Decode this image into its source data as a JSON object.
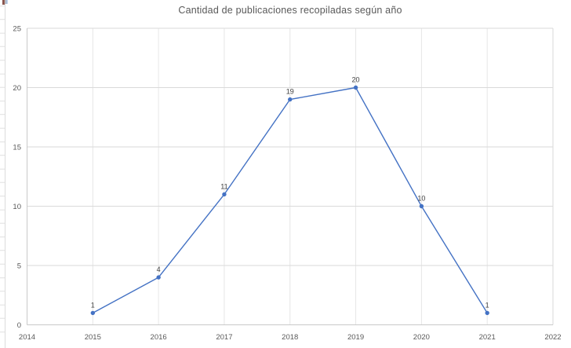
{
  "chart_data": {
    "type": "line",
    "title": "Cantidad de publicaciones recopiladas según año",
    "x": [
      2015,
      2016,
      2017,
      2018,
      2019,
      2020,
      2021
    ],
    "values": [
      1,
      4,
      11,
      19,
      20,
      10,
      1
    ],
    "data_labels": [
      "1",
      "4",
      "11",
      "19",
      "20",
      "10",
      "1"
    ],
    "xlim": [
      2014,
      2022
    ],
    "ylim": [
      0,
      25
    ],
    "x_ticks": [
      "2014",
      "2015",
      "2016",
      "2017",
      "2018",
      "2019",
      "2020",
      "2021",
      "2022"
    ],
    "y_ticks": [
      "0",
      "5",
      "10",
      "15",
      "20",
      "25"
    ],
    "series_color": "#4472C4",
    "marker": "circle",
    "grid": "both",
    "legend": "none",
    "xlabel": "",
    "ylabel": ""
  },
  "colors": {
    "title": "#595959",
    "axis_labels": "#595959",
    "data_labels": "#404040",
    "gridline_h": "#dadada",
    "gridline_v": "#e6e6e6",
    "axis_line": "#c9c9c9",
    "plot_border": "#dadada",
    "background": "#ffffff"
  },
  "background_artifact": {
    "colors": [
      "#8a564e",
      "#8b97ab",
      "#bcd0e8"
    ]
  }
}
